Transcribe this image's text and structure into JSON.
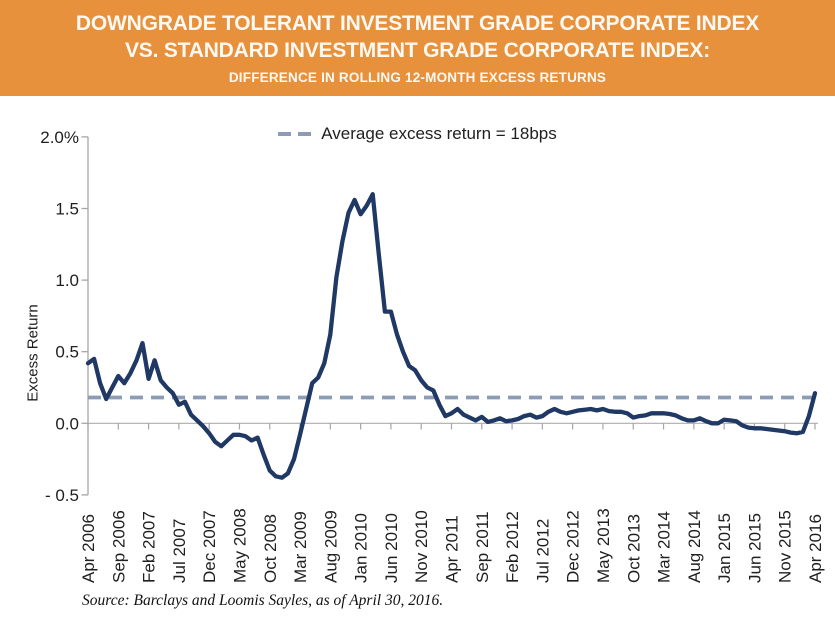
{
  "banner": {
    "title_line1": "DOWNGRADE TOLERANT INVESTMENT GRADE CORPORATE INDEX",
    "title_line2": "VS. STANDARD INVESTMENT GRADE CORPORATE INDEX:",
    "subtitle": "DIFFERENCE IN ROLLING 12-MONTH EXCESS RETURNS",
    "background_color": "#E8913C",
    "text_color": "#FCF8F2"
  },
  "legend": {
    "label": "Average excess return = 18bps"
  },
  "source_note": "Source: Barclays and Loomis Sayles, as of April 30, 2016.",
  "colors": {
    "line": "#1F3864",
    "average_line": "#8C9CB4",
    "axis": "#A6A6A6",
    "text": "#1F1F1F"
  },
  "chart_data": {
    "type": "line",
    "title": "Downgrade Tolerant Investment Grade Corporate Index vs. Standard Investment Grade Corporate Index: Difference in Rolling 12-Month Excess Returns",
    "ylabel": "Excess Return",
    "ylim": [
      -0.5,
      2.0
    ],
    "y_tick_step": 0.5,
    "y_tick_labels": [
      "2.0%",
      "1.5",
      "1.0",
      "0.5",
      "0.0",
      "- 0.5"
    ],
    "y_tick_values": [
      2.0,
      1.5,
      1.0,
      0.5,
      0.0,
      -0.5
    ],
    "x_start": "Apr 2006",
    "x_end": "Apr 2016",
    "frequency": "monthly",
    "x_tick_labels": [
      "Apr 2006",
      "Sep 2006",
      "Feb 2007",
      "Jul 2007",
      "Dec 2007",
      "May 2008",
      "Oct 2008",
      "Mar 2009",
      "Aug 2009",
      "Jan 2010",
      "Jun 2010",
      "Nov 2010",
      "Apr 2011",
      "Sep 2011",
      "Feb 2012",
      "Jul 2012",
      "Dec 2012",
      "May 2013",
      "Oct 2013",
      "Mar 2014",
      "Aug 2014",
      "Jan 2015",
      "Jun 2015",
      "Nov 2015",
      "Apr 2016"
    ],
    "grid": false,
    "legend_position": "top-center",
    "reference_line": {
      "value": 0.18,
      "style": "dashed",
      "label": "Average excess return = 18bps",
      "average_excess_return_bps": 18
    },
    "series": [
      {
        "name": "Difference in rolling 12-month excess returns",
        "color": "#1F3864",
        "values": [
          0.42,
          0.45,
          0.28,
          0.17,
          0.25,
          0.33,
          0.28,
          0.35,
          0.44,
          0.56,
          0.31,
          0.44,
          0.3,
          0.25,
          0.21,
          0.13,
          0.15,
          0.06,
          0.02,
          -0.02,
          -0.07,
          -0.13,
          -0.16,
          -0.12,
          -0.08,
          -0.08,
          -0.09,
          -0.12,
          -0.1,
          -0.22,
          -0.33,
          -0.37,
          -0.38,
          -0.35,
          -0.25,
          -0.08,
          0.1,
          0.28,
          0.32,
          0.42,
          0.62,
          1.02,
          1.27,
          1.47,
          1.56,
          1.46,
          1.52,
          1.6,
          1.18,
          0.78,
          0.78,
          0.62,
          0.5,
          0.4,
          0.37,
          0.3,
          0.25,
          0.23,
          0.13,
          0.05,
          0.07,
          0.1,
          0.06,
          0.04,
          0.02,
          0.045,
          0.01,
          0.02,
          0.035,
          0.015,
          0.02,
          0.03,
          0.05,
          0.06,
          0.04,
          0.05,
          0.08,
          0.1,
          0.08,
          0.07,
          0.08,
          0.09,
          0.095,
          0.1,
          0.09,
          0.1,
          0.085,
          0.08,
          0.08,
          0.07,
          0.04,
          0.05,
          0.055,
          0.07,
          0.07,
          0.07,
          0.065,
          0.055,
          0.035,
          0.02,
          0.02,
          0.035,
          0.015,
          0.0,
          0.0,
          0.025,
          0.02,
          0.015,
          -0.015,
          -0.03,
          -0.035,
          -0.035,
          -0.04,
          -0.045,
          -0.05,
          -0.055,
          -0.065,
          -0.07,
          -0.06,
          0.05,
          0.21
        ]
      }
    ]
  }
}
